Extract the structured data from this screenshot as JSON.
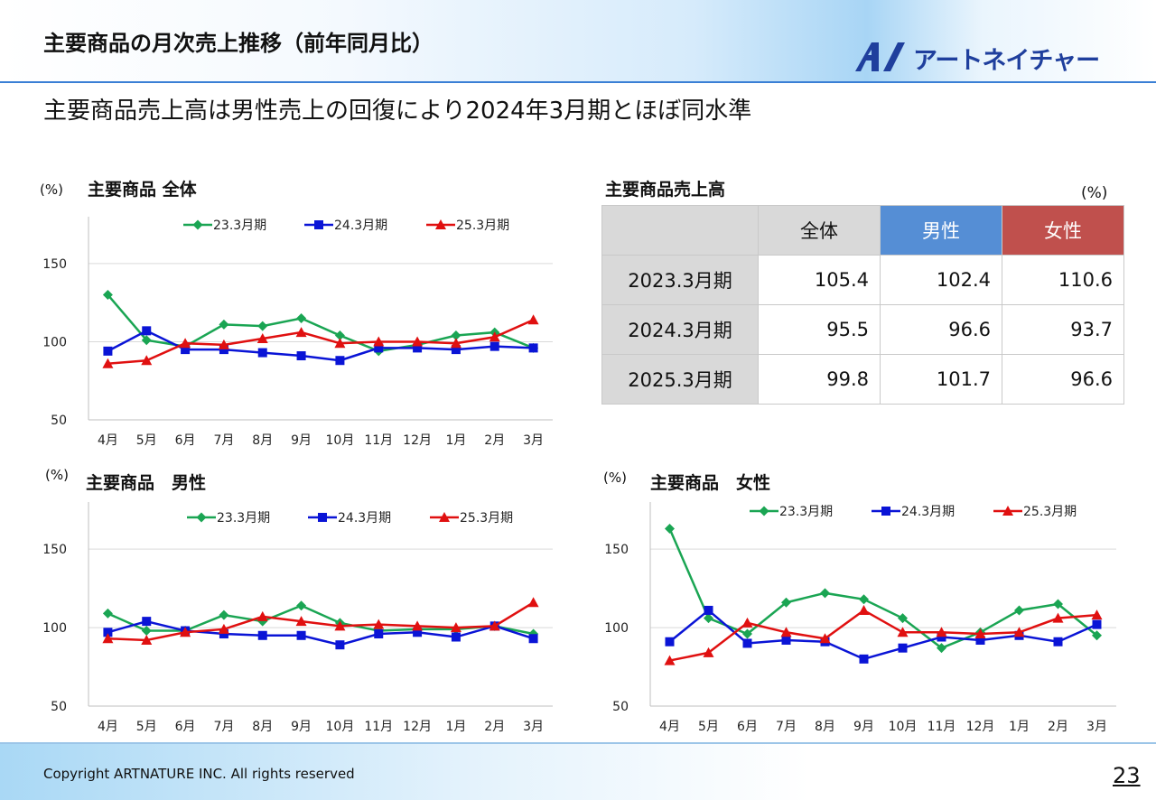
{
  "header": {
    "title": "主要商品の月次売上推移（前年同月比）",
    "logo_text": "アートネイチャー",
    "subtitle": "主要商品売上高は男性売上の回復により2024年3月期とほぼ同水準"
  },
  "colors": {
    "s23": "#1aa553",
    "s24": "#0a14d6",
    "s25": "#e01010",
    "men": "#558ed5",
    "women": "#c0504d"
  },
  "table": {
    "title": "主要商品売上高",
    "unit": "(%)",
    "headers": [
      "全体",
      "男性",
      "女性"
    ],
    "rows": [
      {
        "label": "2023.3月期",
        "values": [
          "105.4",
          "102.4",
          "110.6"
        ]
      },
      {
        "label": "2024.3月期",
        "values": [
          "95.5",
          "96.6",
          "93.7"
        ]
      },
      {
        "label": "2025.3月期",
        "values": [
          "99.8",
          "101.7",
          "96.6"
        ]
      }
    ]
  },
  "chart_data": [
    {
      "type": "line",
      "title": "主要商品 全体",
      "unit": "(%)",
      "categories": [
        "4月",
        "5月",
        "6月",
        "7月",
        "8月",
        "9月",
        "10月",
        "11月",
        "12月",
        "1月",
        "2月",
        "3月"
      ],
      "ylim": [
        50,
        180
      ],
      "yticks": [
        50,
        100,
        150
      ],
      "grid": true,
      "legend": "top",
      "series": [
        {
          "name": "23.3月期",
          "marker": "diamond",
          "values": [
            130,
            101,
            97,
            111,
            110,
            115,
            104,
            94,
            98,
            104,
            106,
            96
          ]
        },
        {
          "name": "24.3月期",
          "marker": "square",
          "values": [
            94,
            107,
            95,
            95,
            93,
            91,
            88,
            96,
            96,
            95,
            97,
            96
          ]
        },
        {
          "name": "25.3月期",
          "marker": "triangle",
          "values": [
            86,
            88,
            99,
            98,
            102,
            106,
            99,
            100,
            100,
            99,
            103,
            114
          ]
        }
      ]
    },
    {
      "type": "line",
      "title": "主要商品　男性",
      "unit": "(%)",
      "categories": [
        "4月",
        "5月",
        "6月",
        "7月",
        "8月",
        "9月",
        "10月",
        "11月",
        "12月",
        "1月",
        "2月",
        "3月"
      ],
      "ylim": [
        50,
        180
      ],
      "yticks": [
        50,
        100,
        150
      ],
      "grid": true,
      "legend": "top",
      "series": [
        {
          "name": "23.3月期",
          "marker": "diamond",
          "values": [
            109,
            98,
            98,
            108,
            104,
            114,
            103,
            98,
            99,
            99,
            101,
            96
          ]
        },
        {
          "name": "24.3月期",
          "marker": "square",
          "values": [
            97,
            104,
            98,
            96,
            95,
            95,
            89,
            96,
            97,
            94,
            101,
            93
          ]
        },
        {
          "name": "25.3月期",
          "marker": "triangle",
          "values": [
            93,
            92,
            97,
            99,
            107,
            104,
            101,
            102,
            101,
            100,
            101,
            116
          ]
        }
      ]
    },
    {
      "type": "line",
      "title": "主要商品　女性",
      "unit": "(%)",
      "categories": [
        "4月",
        "5月",
        "6月",
        "7月",
        "8月",
        "9月",
        "10月",
        "11月",
        "12月",
        "1月",
        "2月",
        "3月"
      ],
      "ylim": [
        50,
        180
      ],
      "yticks": [
        50,
        100,
        150
      ],
      "grid": true,
      "legend": "top",
      "series": [
        {
          "name": "23.3月期",
          "marker": "diamond",
          "values": [
            163,
            106,
            96,
            116,
            122,
            118,
            106,
            87,
            97,
            111,
            115,
            95
          ]
        },
        {
          "name": "24.3月期",
          "marker": "square",
          "values": [
            91,
            111,
            90,
            92,
            91,
            80,
            87,
            94,
            92,
            95,
            91,
            102
          ]
        },
        {
          "name": "25.3月期",
          "marker": "triangle",
          "values": [
            79,
            84,
            103,
            97,
            93,
            111,
            97,
            97,
            96,
            97,
            106,
            108
          ]
        }
      ]
    }
  ],
  "footer": {
    "copyright": "Copyright ARTNATURE INC. All rights reserved",
    "page": "23"
  }
}
